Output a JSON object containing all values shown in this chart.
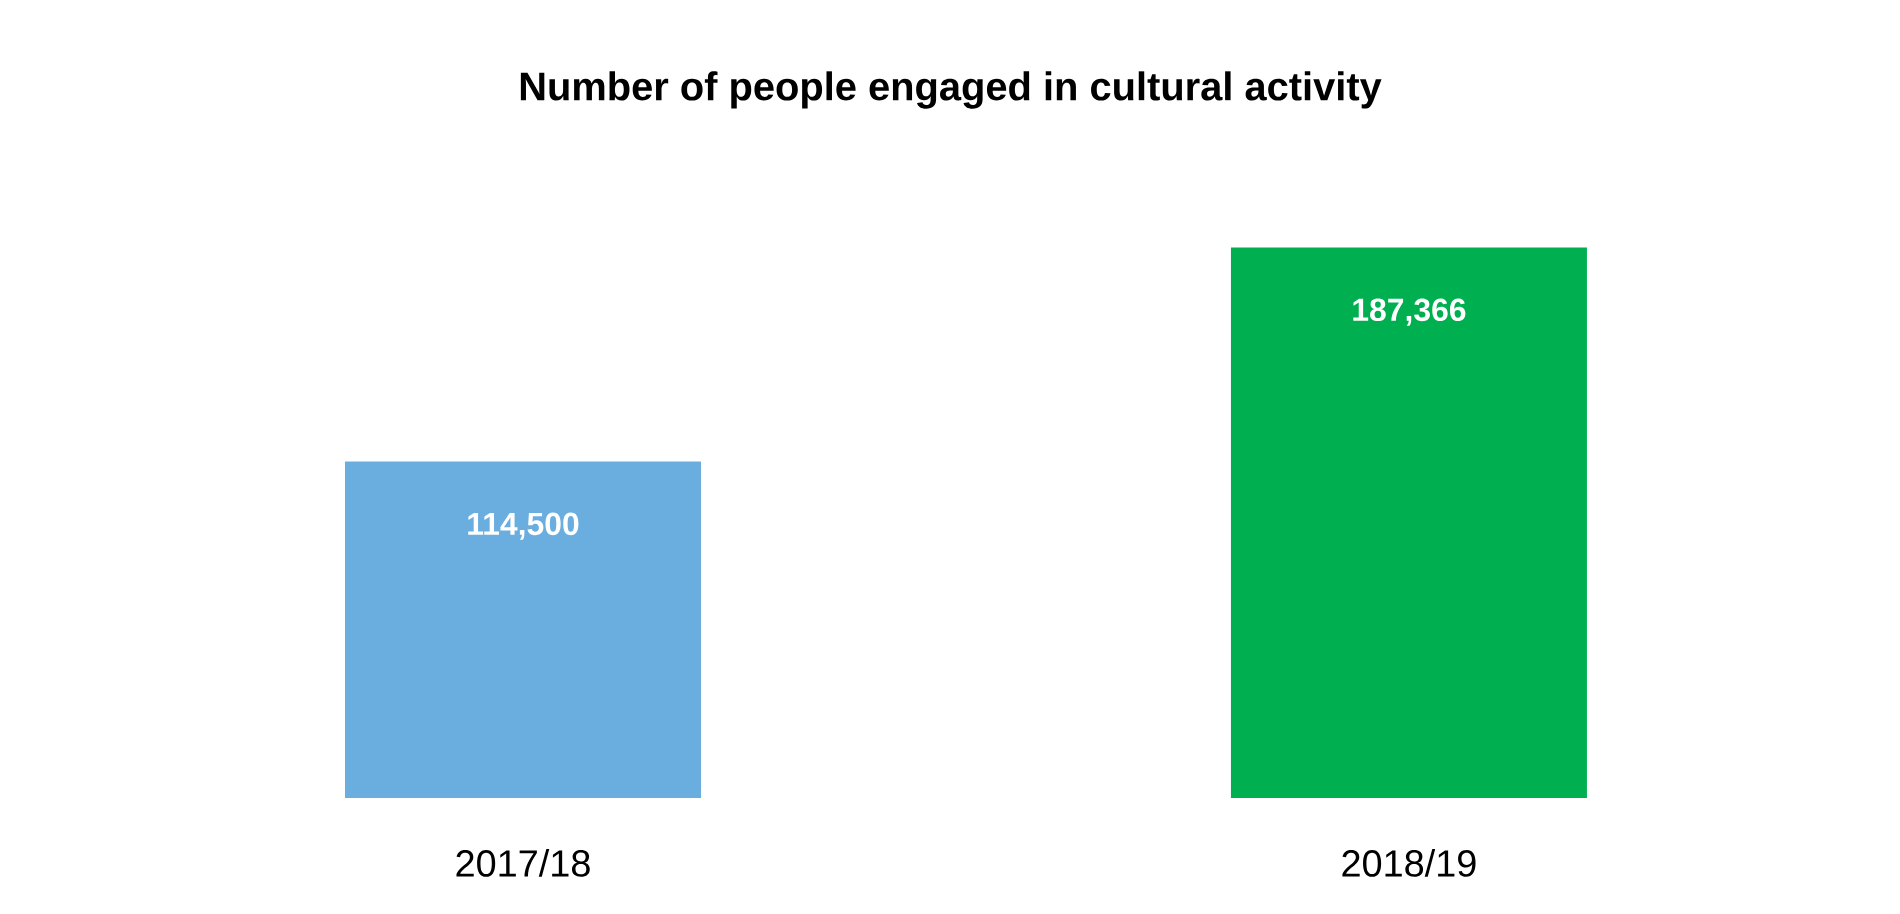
{
  "chart_data": {
    "type": "bar",
    "title": "Number of people engaged in cultural activity",
    "categories": [
      "2017/18",
      "2018/19"
    ],
    "values": [
      114500,
      187366
    ],
    "colors": [
      "#6aaee0",
      "#00b050"
    ],
    "value_labels": [
      "114,500",
      "187,366"
    ]
  }
}
